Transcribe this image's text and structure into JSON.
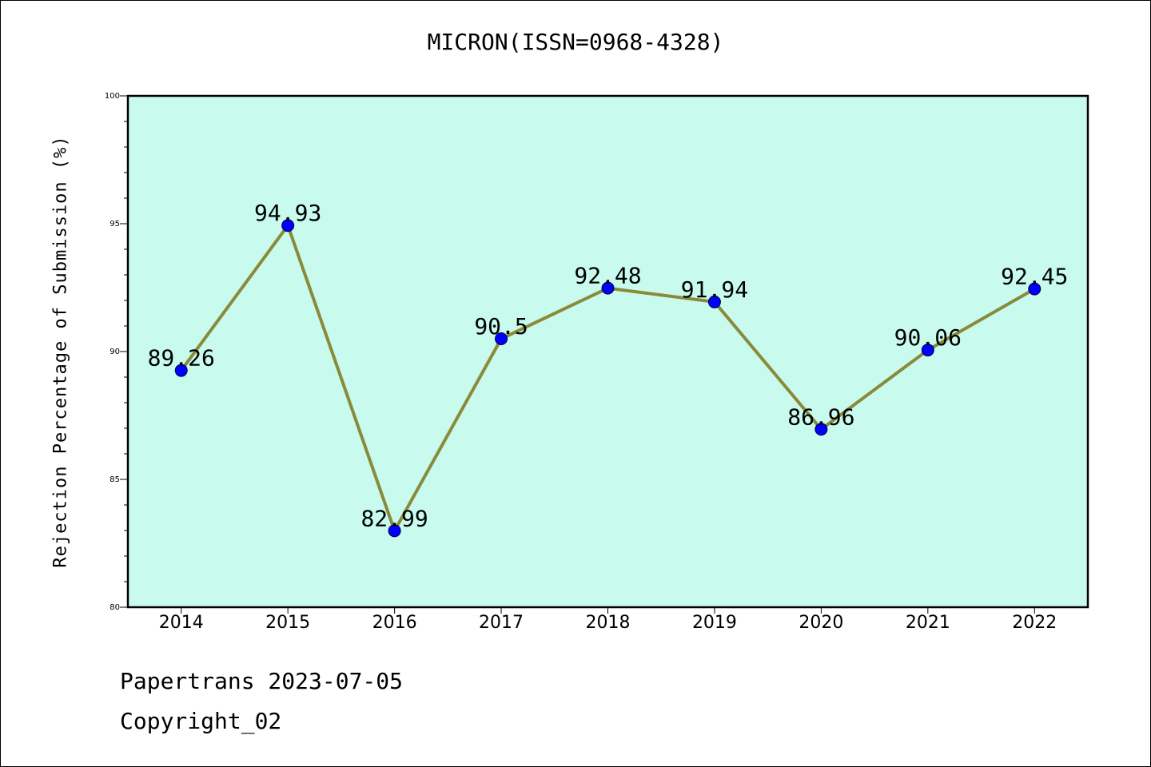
{
  "chart_data": {
    "type": "line",
    "title": "MICRON(ISSN=0968-4328)",
    "ylabel": "Rejection Percentage of Submission (%)",
    "xlabel": "",
    "categories": [
      "2014",
      "2015",
      "2016",
      "2017",
      "2018",
      "2019",
      "2020",
      "2021",
      "2022"
    ],
    "series": [
      {
        "values": [
          89.26,
          94.93,
          82.99,
          90.5,
          92.48,
          91.94,
          86.96,
          90.06,
          92.45
        ],
        "data_labels": [
          "89.26",
          "94.93",
          "82.99",
          "90.5",
          "92.48",
          "91.94",
          "86.96",
          "90.06",
          "92.45"
        ]
      }
    ],
    "ylim": [
      80,
      100
    ],
    "y_ticks": [
      "80",
      "85",
      "90",
      "95",
      "100"
    ],
    "grid": false,
    "legend": "none",
    "colors": {
      "plot_background": "#c8fbee",
      "line": "#8a8a3a",
      "marker": "#0000ff"
    }
  },
  "footer": {
    "line1": "Papertrans 2023-07-05",
    "line2": "Copyright_02"
  }
}
